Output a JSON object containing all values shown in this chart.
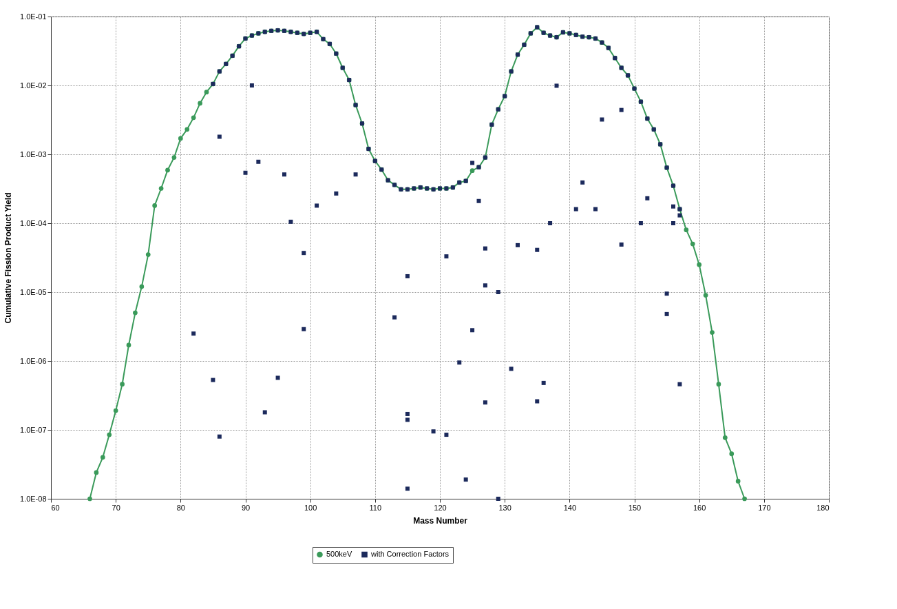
{
  "chart_data": {
    "type": "line",
    "xlabel": "Mass Number",
    "ylabel": "Cumulative Fission Product Yield",
    "log": "y",
    "grid": true,
    "legend": "bottom",
    "xlim": [
      60,
      180
    ],
    "xticks": [
      60,
      70,
      80,
      90,
      100,
      110,
      120,
      130,
      140,
      150,
      160,
      170,
      180
    ],
    "ylim": [
      1e-08,
      0.1
    ],
    "yticks": [
      {
        "value": 1e-08,
        "label": "1.0E-08"
      },
      {
        "value": 1e-07,
        "label": "1.0E-07"
      },
      {
        "value": 1e-06,
        "label": "1.0E-06"
      },
      {
        "value": 1e-05,
        "label": "1.0E-05"
      },
      {
        "value": 0.0001,
        "label": "1.0E-04"
      },
      {
        "value": 0.001,
        "label": "1.0E-03"
      },
      {
        "value": 0.01,
        "label": "1.0E-02"
      },
      {
        "value": 0.1,
        "label": "1.0E-01"
      }
    ],
    "series": [
      {
        "name": "500keV",
        "marker": "circle",
        "line_style": "solid",
        "color": "#3a9a5a",
        "x": [
          66,
          67,
          68,
          69,
          70,
          71,
          72,
          73,
          74,
          75,
          76,
          77,
          78,
          79,
          80,
          81,
          82,
          83,
          84,
          85,
          86,
          87,
          88,
          89,
          90,
          91,
          92,
          93,
          94,
          95,
          96,
          97,
          98,
          99,
          100,
          101,
          102,
          103,
          104,
          105,
          106,
          107,
          108,
          109,
          110,
          111,
          112,
          113,
          114,
          115,
          116,
          117,
          118,
          119,
          120,
          121,
          122,
          123,
          124,
          125,
          126,
          127,
          128,
          129,
          130,
          131,
          132,
          133,
          134,
          135,
          136,
          137,
          138,
          139,
          140,
          141,
          142,
          143,
          144,
          145,
          146,
          147,
          148,
          149,
          150,
          151,
          152,
          153,
          154,
          155,
          156,
          157,
          158,
          159,
          160,
          161,
          162,
          163,
          164,
          165,
          166,
          167
        ],
        "values": [
          1e-08,
          2.4e-08,
          4e-08,
          8.5e-08,
          1.9e-07,
          4.6e-07,
          1.7e-06,
          5e-06,
          1.2e-05,
          3.5e-05,
          0.00018,
          0.00032,
          0.00059,
          0.0009,
          0.0017,
          0.0023,
          0.0034,
          0.0055,
          0.008,
          0.0105,
          0.016,
          0.0205,
          0.027,
          0.037,
          0.048,
          0.053,
          0.057,
          0.06,
          0.062,
          0.063,
          0.062,
          0.06,
          0.058,
          0.056,
          0.058,
          0.06,
          0.047,
          0.04,
          0.029,
          0.018,
          0.012,
          0.0052,
          0.0028,
          0.0012,
          0.0008,
          0.0006,
          0.00042,
          0.00036,
          0.00031,
          0.00031,
          0.00032,
          0.00033,
          0.00032,
          0.00031,
          0.00032,
          0.00032,
          0.00033,
          0.00039,
          0.00041,
          0.00058,
          0.00065,
          0.0009,
          0.0027,
          0.0045,
          0.007,
          0.016,
          0.028,
          0.039,
          0.057,
          0.07,
          0.058,
          0.053,
          0.05,
          0.059,
          0.057,
          0.054,
          0.051,
          0.05,
          0.048,
          0.042,
          0.035,
          0.025,
          0.018,
          0.014,
          0.009,
          0.0058,
          0.0033,
          0.0023,
          0.0014,
          0.00064,
          0.00035,
          0.00016,
          8e-05,
          5e-05,
          2.5e-05,
          9e-06,
          2.6e-06,
          4.6e-07,
          7.7e-08,
          4.5e-08,
          1.8e-08,
          1e-08
        ]
      },
      {
        "name": "with Correction Factors",
        "type": "scatter",
        "marker": "square",
        "color": "#1c2a5c",
        "x": [
          85,
          86,
          87,
          88,
          89,
          90,
          91,
          92,
          93,
          94,
          95,
          96,
          97,
          98,
          99,
          100,
          101,
          102,
          103,
          104,
          105,
          106,
          107,
          108,
          109,
          110,
          111,
          112,
          113,
          114,
          115,
          116,
          117,
          118,
          119,
          120,
          121,
          122,
          123,
          124,
          125,
          126,
          127,
          128,
          129,
          130,
          131,
          132,
          133,
          134,
          135,
          136,
          137,
          138,
          139,
          140,
          141,
          142,
          143,
          144,
          145,
          146,
          147,
          148,
          149,
          150,
          151,
          152,
          153,
          154,
          155,
          156,
          157,
          82,
          85,
          86,
          86,
          90,
          91,
          92,
          93,
          95,
          96,
          97,
          99,
          99,
          101,
          104,
          107,
          113,
          115,
          115,
          115,
          115,
          119,
          121,
          121,
          123,
          124,
          125,
          126,
          127,
          127,
          127,
          129,
          129,
          131,
          132,
          135,
          135,
          136,
          137,
          138,
          141,
          142,
          144,
          145,
          148,
          148,
          151,
          152,
          155,
          155,
          156,
          156,
          157,
          157
        ],
        "values": [
          0.0105,
          0.016,
          0.0205,
          0.027,
          0.037,
          0.048,
          0.053,
          0.057,
          0.06,
          0.062,
          0.063,
          0.062,
          0.06,
          0.058,
          0.056,
          0.058,
          0.06,
          0.047,
          0.04,
          0.029,
          0.018,
          0.012,
          0.0052,
          0.0028,
          0.0012,
          0.0008,
          0.0006,
          0.00042,
          0.00036,
          0.00031,
          0.00031,
          0.00032,
          0.00033,
          0.00032,
          0.00031,
          0.00032,
          0.00032,
          0.00033,
          0.00039,
          0.00041,
          0.00075,
          0.00065,
          0.0009,
          0.0027,
          0.0045,
          0.007,
          0.016,
          0.028,
          0.039,
          0.057,
          0.07,
          0.058,
          0.053,
          0.05,
          0.059,
          0.057,
          0.054,
          0.051,
          0.05,
          0.048,
          0.042,
          0.035,
          0.025,
          0.018,
          0.014,
          0.009,
          0.0058,
          0.0033,
          0.0023,
          0.0014,
          0.00064,
          0.00035,
          0.00016,
          2.5e-06,
          5.3e-07,
          0.0018,
          8e-08,
          0.00054,
          0.01,
          0.00078,
          1.8e-07,
          5.7e-07,
          0.00051,
          0.000105,
          3.7e-05,
          2.9e-06,
          0.00018,
          0.00027,
          0.00051,
          4.3e-06,
          1.7e-05,
          1.7e-07,
          1.4e-07,
          1.4e-08,
          9.5e-08,
          8.5e-08,
          3.3e-05,
          9.5e-07,
          1.9e-08,
          2.8e-06,
          0.00021,
          4.3e-05,
          1.25e-05,
          2.5e-07,
          1e-08,
          1e-05,
          7.7e-07,
          4.8e-05,
          4.1e-05,
          2.6e-07,
          4.8e-07,
          0.0001,
          0.0099,
          0.00016,
          0.00039,
          0.00016,
          0.0032,
          0.0044,
          4.9e-05,
          0.0001,
          0.00023,
          9.5e-06,
          4.8e-06,
          0.000175,
          0.0001,
          4.6e-07,
          0.00013
        ]
      }
    ]
  }
}
